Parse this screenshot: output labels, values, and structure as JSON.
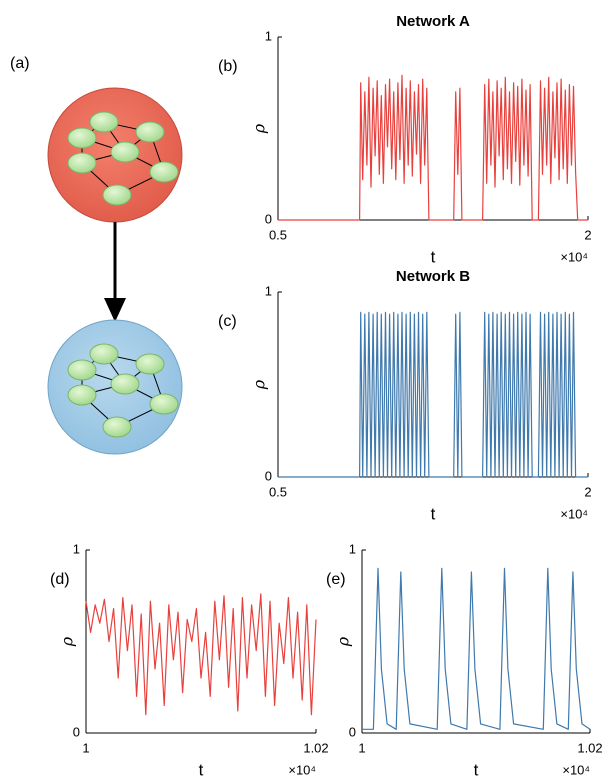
{
  "diagram": {
    "label": "(a)"
  },
  "chart_data": [
    {
      "type": "line",
      "label": "(b)",
      "title": "Network A",
      "xlabel": "t",
      "ylabel": "ρ",
      "x_multiplier": "×10⁴",
      "color": "#e8413d",
      "xlim": [
        5000,
        20000
      ],
      "ylim": [
        0,
        1
      ],
      "xticks": [
        {
          "value": 5000,
          "label": "0.5"
        },
        {
          "value": 20000,
          "label": "2"
        }
      ],
      "yticks": [
        0,
        1
      ],
      "x": [
        5000,
        8950,
        9000,
        9100,
        9200,
        9300,
        9400,
        9500,
        9600,
        9700,
        9800,
        9900,
        10000,
        10100,
        10200,
        10300,
        10400,
        10500,
        10600,
        10700,
        10800,
        10900,
        11000,
        11100,
        11200,
        11300,
        11400,
        11500,
        11600,
        11700,
        11800,
        11900,
        12000,
        12100,
        12200,
        12300,
        13500,
        13600,
        13700,
        13800,
        13900,
        14900,
        15000,
        15100,
        15200,
        15300,
        15400,
        15500,
        15600,
        15700,
        15800,
        15900,
        16000,
        16100,
        16200,
        16300,
        16400,
        16500,
        16600,
        16700,
        16800,
        16900,
        17000,
        17100,
        17200,
        17300,
        17600,
        17700,
        17800,
        17900,
        18000,
        18100,
        18200,
        18300,
        18400,
        18500,
        18600,
        18700,
        18800,
        18900,
        19000,
        19100,
        19200,
        19300,
        19400,
        19500,
        20000
      ],
      "values": [
        0,
        0,
        0.75,
        0.22,
        0.7,
        0.3,
        0.78,
        0.18,
        0.72,
        0.35,
        0.76,
        0.25,
        0.68,
        0.2,
        0.74,
        0.4,
        0.77,
        0.28,
        0.7,
        0.22,
        0.75,
        0.33,
        0.79,
        0.2,
        0.72,
        0.3,
        0.76,
        0.24,
        0.7,
        0.36,
        0.74,
        0.2,
        0.77,
        0.3,
        0.72,
        0,
        0,
        0.7,
        0.25,
        0.72,
        0,
        0,
        0.74,
        0.2,
        0.77,
        0.3,
        0.7,
        0.18,
        0.76,
        0.35,
        0.72,
        0.22,
        0.78,
        0.28,
        0.7,
        0.2,
        0.75,
        0.32,
        0.73,
        0.19,
        0.77,
        0.3,
        0.71,
        0.24,
        0.74,
        0,
        0,
        0.76,
        0.25,
        0.72,
        0.3,
        0.78,
        0.2,
        0.7,
        0.34,
        0.75,
        0.22,
        0.77,
        0.28,
        0.71,
        0.2,
        0.74,
        0.3,
        0.73,
        0.26,
        0,
        0
      ]
    },
    {
      "type": "line",
      "label": "(c)",
      "title": "Network B",
      "xlabel": "t",
      "ylabel": "ρ",
      "x_multiplier": "×10⁴",
      "color": "#3f79ad",
      "xlim": [
        5000,
        20000
      ],
      "ylim": [
        0,
        1
      ],
      "xticks": [
        {
          "value": 5000,
          "label": "0.5"
        },
        {
          "value": 20000,
          "label": "2"
        }
      ],
      "yticks": [
        0,
        1
      ],
      "x": [
        5000,
        8950,
        9000,
        9100,
        9200,
        9300,
        9400,
        9500,
        9600,
        9700,
        9800,
        9900,
        10000,
        10100,
        10200,
        10300,
        10400,
        10500,
        10600,
        10700,
        10800,
        10900,
        11000,
        11100,
        11200,
        11300,
        11400,
        11500,
        11600,
        11700,
        11800,
        11900,
        12000,
        12100,
        12200,
        12300,
        13500,
        13600,
        13700,
        13800,
        13900,
        14900,
        15000,
        15100,
        15200,
        15300,
        15400,
        15500,
        15600,
        15700,
        15800,
        15900,
        16000,
        16100,
        16200,
        16300,
        16400,
        16500,
        16600,
        16700,
        16800,
        16900,
        17000,
        17100,
        17200,
        17300,
        17600,
        17700,
        17800,
        17900,
        18000,
        18100,
        18200,
        18300,
        18400,
        18500,
        18600,
        18700,
        18800,
        18900,
        19000,
        19100,
        19200,
        19300,
        19400,
        19500,
        20000
      ],
      "values": [
        0,
        0,
        0.89,
        0,
        0.88,
        0,
        0.89,
        0,
        0.88,
        0,
        0.89,
        0,
        0.88,
        0,
        0.89,
        0,
        0.88,
        0,
        0.89,
        0,
        0.88,
        0,
        0.89,
        0,
        0.88,
        0,
        0.89,
        0,
        0.88,
        0,
        0.89,
        0,
        0.88,
        0,
        0.89,
        0,
        0,
        0.88,
        0,
        0.89,
        0,
        0,
        0.89,
        0,
        0.88,
        0,
        0.89,
        0,
        0.88,
        0,
        0.89,
        0,
        0.88,
        0,
        0.89,
        0,
        0.88,
        0,
        0.89,
        0,
        0.88,
        0,
        0.89,
        0,
        0.88,
        0,
        0,
        0.89,
        0,
        0.88,
        0,
        0.89,
        0,
        0.88,
        0,
        0.89,
        0,
        0.88,
        0,
        0.89,
        0,
        0.88,
        0,
        0.89,
        0,
        0,
        0
      ]
    },
    {
      "type": "line",
      "label": "(d)",
      "xlabel": "t",
      "ylabel": "ρ",
      "x_multiplier": "×10⁴",
      "color": "#e8413d",
      "xlim": [
        10000,
        10200
      ],
      "ylim": [
        0,
        1
      ],
      "xticks": [
        {
          "value": 10000,
          "label": "1"
        },
        {
          "value": 10200,
          "label": "1.02"
        }
      ],
      "yticks": [
        0,
        1
      ],
      "x": [
        10000,
        10004,
        10008,
        10012,
        10016,
        10020,
        10024,
        10028,
        10032,
        10036,
        10040,
        10044,
        10048,
        10052,
        10056,
        10060,
        10064,
        10068,
        10072,
        10076,
        10080,
        10084,
        10088,
        10092,
        10096,
        10100,
        10104,
        10108,
        10112,
        10116,
        10120,
        10124,
        10128,
        10132,
        10136,
        10140,
        10144,
        10148,
        10152,
        10156,
        10160,
        10164,
        10168,
        10172,
        10176,
        10180,
        10184,
        10188,
        10192,
        10196,
        10200
      ],
      "values": [
        0.72,
        0.55,
        0.7,
        0.6,
        0.73,
        0.5,
        0.68,
        0.3,
        0.74,
        0.45,
        0.7,
        0.2,
        0.65,
        0.1,
        0.72,
        0.35,
        0.6,
        0.15,
        0.7,
        0.4,
        0.66,
        0.22,
        0.62,
        0.5,
        0.68,
        0.3,
        0.55,
        0.2,
        0.72,
        0.4,
        0.75,
        0.25,
        0.68,
        0.12,
        0.74,
        0.3,
        0.7,
        0.45,
        0.76,
        0.2,
        0.72,
        0.15,
        0.6,
        0.38,
        0.74,
        0.3,
        0.66,
        0.18,
        0.7,
        0.1,
        0.62
      ]
    },
    {
      "type": "line",
      "label": "(e)",
      "xlabel": "t",
      "ylabel": "ρ",
      "x_multiplier": "×10⁴",
      "color": "#3f79ad",
      "xlim": [
        10000,
        10200
      ],
      "ylim": [
        0,
        1
      ],
      "xticks": [
        {
          "value": 10000,
          "label": "1"
        },
        {
          "value": 10200,
          "label": "1.02"
        }
      ],
      "yticks": [
        0,
        1
      ],
      "x": [
        10000,
        10010,
        10014,
        10017,
        10022,
        10030,
        10034,
        10037,
        10042,
        10066,
        10070,
        10073,
        10078,
        10092,
        10096,
        10099,
        10104,
        10121,
        10125,
        10128,
        10133,
        10159,
        10163,
        10166,
        10171,
        10181,
        10185,
        10188,
        10193,
        10200
      ],
      "values": [
        0.02,
        0.02,
        0.9,
        0.35,
        0.05,
        0.02,
        0.88,
        0.35,
        0.05,
        0.02,
        0.9,
        0.35,
        0.05,
        0.02,
        0.88,
        0.35,
        0.05,
        0.02,
        0.9,
        0.35,
        0.05,
        0.02,
        0.9,
        0.35,
        0.05,
        0.02,
        0.88,
        0.35,
        0.05,
        0.02
      ]
    }
  ]
}
